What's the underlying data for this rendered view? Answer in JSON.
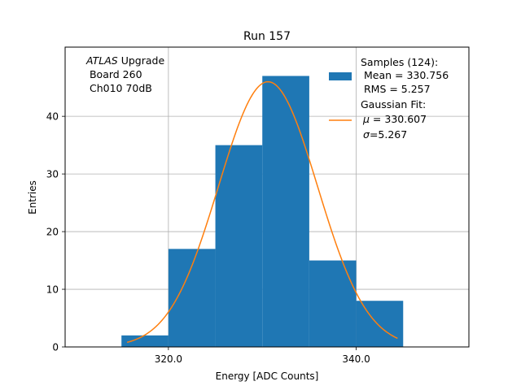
{
  "chart_data": {
    "type": "bar",
    "title": "Run 157",
    "xlabel": "Energy [ADC Counts]",
    "ylabel": "Entries",
    "xlim": [
      309.0,
      352.0
    ],
    "ylim": [
      0,
      52
    ],
    "grid": true,
    "legend_position": "top-right",
    "bin_edges": [
      315.0,
      320.0,
      325.0,
      330.0,
      335.0,
      340.0,
      345.0
    ],
    "values": [
      2,
      17,
      35,
      47,
      15,
      8
    ],
    "x_ticks": [
      {
        "value": 320.0,
        "label": "320.0"
      },
      {
        "value": 340.0,
        "label": "340.0"
      }
    ],
    "y_ticks": [
      {
        "value": 0,
        "label": "0"
      },
      {
        "value": 10,
        "label": "10"
      },
      {
        "value": 20,
        "label": "20"
      },
      {
        "value": 30,
        "label": "30"
      },
      {
        "value": 40,
        "label": "40"
      }
    ],
    "series": [
      {
        "name": "Samples (124):",
        "kind": "histogram",
        "color": "#1f77b4"
      },
      {
        "name": "Gaussian Fit:",
        "kind": "line",
        "color": "#ff7f0e",
        "x_range": [
          315.6,
          344.4
        ],
        "mu": 330.607,
        "sigma": 5.267,
        "peak": 46
      }
    ],
    "legend": {
      "samples": {
        "line1": "Samples (124):",
        "line2": " Mean = 330.756",
        "line3": " RMS = 5.257"
      },
      "fit": {
        "line1": "Gaussian Fit:",
        "mu_symbol": "μ",
        "mu_text": " = 330.607",
        "sigma_symbol": "σ",
        "sigma_text": "=5.267"
      }
    },
    "annotation": {
      "experiment": "ATLAS",
      "experiment_suffix": " Upgrade",
      "line2": " Board 260",
      "line3": " Ch010 70dB"
    }
  }
}
